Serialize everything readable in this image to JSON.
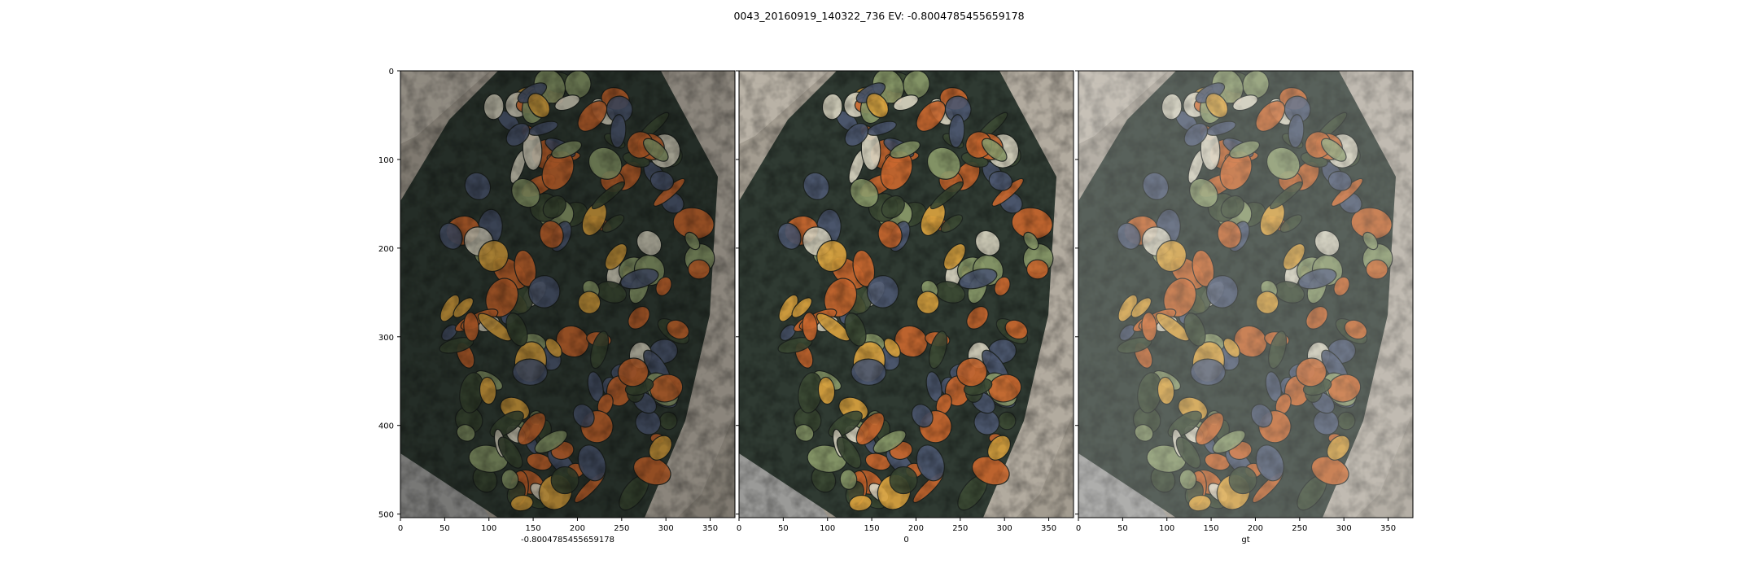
{
  "figure": {
    "title": "0043_20160919_140322_736 EV: -0.8004785455659178"
  },
  "panels": [
    {
      "id": "p1",
      "xlabel": "-0.8004785455659178",
      "exposure": 0.78
    },
    {
      "id": "p2",
      "xlabel": "0",
      "exposure": 1.0
    },
    {
      "id": "p3",
      "xlabel": "gt",
      "exposure": 1.45
    }
  ],
  "axes": {
    "x_ticks": [
      "0",
      "50",
      "100",
      "150",
      "200",
      "250",
      "300",
      "350"
    ],
    "y_ticks": [
      "0",
      "100",
      "200",
      "300",
      "400",
      "500"
    ],
    "x_range": [
      0,
      378
    ],
    "y_range": [
      0,
      504
    ]
  },
  "image_content": {
    "subject": "pile of ornamental gourds in a cardboard box",
    "colors": {
      "orange": "#c8672e",
      "yellow": "#d9a23e",
      "green_dark": "#3c4a34",
      "green_light": "#8a9a6a",
      "slate_blue": "#4d5870",
      "cream": "#d8d3c0",
      "box": "#a39c90",
      "crate": "#9a9a98"
    }
  }
}
